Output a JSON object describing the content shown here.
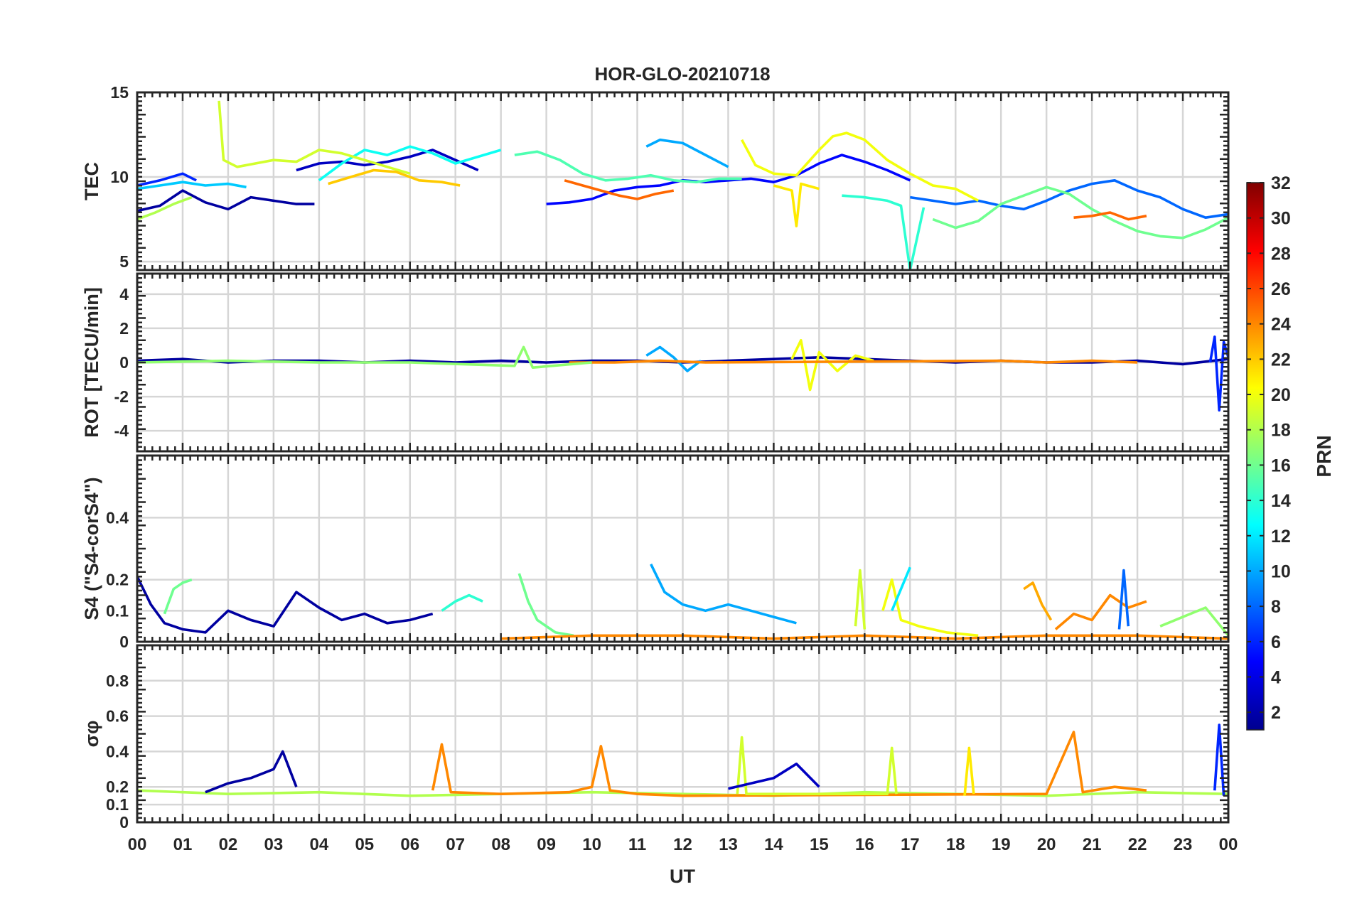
{
  "title": "HOR-GLO-20210718",
  "xlabel": "UT",
  "x_ticks": [
    "00",
    "01",
    "02",
    "03",
    "04",
    "05",
    "06",
    "07",
    "08",
    "09",
    "10",
    "11",
    "12",
    "13",
    "14",
    "15",
    "16",
    "17",
    "18",
    "19",
    "20",
    "21",
    "22",
    "23",
    "00"
  ],
  "colorbar": {
    "label": "PRN",
    "range": [
      1,
      32
    ],
    "ticks": [
      "32",
      "30",
      "28",
      "26",
      "24",
      "22",
      "20",
      "18",
      "16",
      "14",
      "12",
      "10",
      "8",
      "6",
      "4",
      "2"
    ],
    "colormap": "jet"
  },
  "chart_data": [
    {
      "type": "line",
      "panel": "TEC",
      "ylabel": "TEC",
      "ylim": [
        4.5,
        15
      ],
      "y_ticks": [
        "15",
        "10",
        "5"
      ],
      "series": [
        {
          "prn": 2,
          "x": [
            0.0,
            0.5,
            1.0,
            1.5,
            2.0,
            2.5,
            3.0,
            3.5,
            3.9
          ],
          "y": [
            8.0,
            8.3,
            9.2,
            8.5,
            8.1,
            8.8,
            8.6,
            8.4,
            8.4
          ]
        },
        {
          "prn": 3,
          "x": [
            3.5,
            4.0,
            4.5,
            5.0,
            5.5,
            6.0,
            6.5,
            7.0,
            7.5
          ],
          "y": [
            10.4,
            10.8,
            10.9,
            10.7,
            10.9,
            11.2,
            11.6,
            11.0,
            10.4
          ]
        },
        {
          "prn": 5,
          "x": [
            9.0,
            9.5,
            10.0,
            10.5,
            11.0,
            11.5,
            12.0,
            12.5,
            13.0,
            13.5,
            14.0,
            14.5,
            15.0,
            15.5,
            16.0,
            16.5,
            17.0
          ],
          "y": [
            8.4,
            8.5,
            8.7,
            9.2,
            9.4,
            9.5,
            9.8,
            9.7,
            9.8,
            9.9,
            9.7,
            10.1,
            10.8,
            11.3,
            10.9,
            10.4,
            9.8
          ]
        },
        {
          "prn": 6,
          "x": [
            0.0,
            0.5,
            1.0,
            1.3
          ],
          "y": [
            9.5,
            9.8,
            10.2,
            9.8
          ]
        },
        {
          "prn": 8,
          "x": [
            17.0,
            17.5,
            18.0,
            18.5,
            19.0,
            19.5,
            20.0,
            20.5,
            21.0,
            21.5,
            22.0,
            22.5,
            23.0,
            23.5,
            24.0
          ],
          "y": [
            8.8,
            8.6,
            8.4,
            8.6,
            8.3,
            8.1,
            8.6,
            9.2,
            9.6,
            9.8,
            9.2,
            8.8,
            8.1,
            7.6,
            7.8
          ]
        },
        {
          "prn": 10,
          "x": [
            11.2,
            11.5,
            12.0,
            12.5,
            13.0
          ],
          "y": [
            11.8,
            12.2,
            12.0,
            11.3,
            10.6
          ]
        },
        {
          "prn": 11,
          "x": [
            0.0,
            0.5,
            1.0,
            1.5,
            2.0,
            2.4
          ],
          "y": [
            9.3,
            9.5,
            9.7,
            9.5,
            9.6,
            9.4
          ]
        },
        {
          "prn": 13,
          "x": [
            4.0,
            4.5,
            5.0,
            5.5,
            6.0,
            6.5,
            7.0,
            7.5,
            8.0
          ],
          "y": [
            9.8,
            10.8,
            11.6,
            11.3,
            11.8,
            11.4,
            10.8,
            11.2,
            11.6
          ]
        },
        {
          "prn": 14,
          "x": [
            15.5,
            16.0,
            16.5,
            16.8,
            17.0,
            17.3
          ],
          "y": [
            8.9,
            8.8,
            8.6,
            8.3,
            4.5,
            8.2
          ]
        },
        {
          "prn": 15,
          "x": [
            8.3,
            8.8,
            9.3,
            9.8,
            10.3,
            10.8,
            11.3,
            11.8,
            12.3,
            12.8,
            13.3
          ],
          "y": [
            11.3,
            11.5,
            11.0,
            10.2,
            9.8,
            9.9,
            10.1,
            9.8,
            9.7,
            9.9,
            9.9
          ]
        },
        {
          "prn": 16,
          "x": [
            17.5,
            18.0,
            18.5,
            19.0,
            19.5,
            20.0,
            20.5,
            21.0,
            21.5,
            22.0,
            22.5,
            23.0,
            23.5,
            24.0
          ],
          "y": [
            7.5,
            7.0,
            7.4,
            8.4,
            8.9,
            9.4,
            9.0,
            8.1,
            7.4,
            6.8,
            6.5,
            6.4,
            6.9,
            7.6
          ]
        },
        {
          "prn": 18,
          "x": [
            0.0,
            0.4,
            0.8,
            1.2
          ],
          "y": [
            7.5,
            7.9,
            8.4,
            8.8
          ]
        },
        {
          "prn": 19,
          "x": [
            1.8,
            1.9,
            2.2,
            2.6,
            3.0,
            3.5,
            4.0,
            4.5,
            5.0,
            5.5,
            6.0
          ],
          "y": [
            14.5,
            11.0,
            10.6,
            10.8,
            11.0,
            10.9,
            11.6,
            11.4,
            11.0,
            10.6,
            10.2
          ]
        },
        {
          "prn": 20,
          "x": [
            13.3,
            13.6,
            14.0,
            14.5,
            15.0,
            15.3,
            15.6,
            16.0,
            16.5,
            17.0,
            17.5,
            18.0,
            18.5
          ],
          "y": [
            12.2,
            10.7,
            10.2,
            10.1,
            11.6,
            12.4,
            12.6,
            12.2,
            11.0,
            10.2,
            9.5,
            9.3,
            8.6
          ]
        },
        {
          "prn": 21,
          "x": [
            14.0,
            14.4,
            14.5,
            14.6,
            15.0
          ],
          "y": [
            9.5,
            9.2,
            7.1,
            9.6,
            9.3
          ]
        },
        {
          "prn": 22,
          "x": [
            4.2,
            4.7,
            5.2,
            5.7,
            6.2,
            6.7,
            7.1
          ],
          "y": [
            9.6,
            10.0,
            10.4,
            10.3,
            9.8,
            9.7,
            9.5
          ]
        },
        {
          "prn": 25,
          "x": [
            9.4,
            9.8,
            10.2,
            10.6,
            11.0,
            11.4,
            11.8
          ],
          "y": [
            9.8,
            9.5,
            9.2,
            8.9,
            8.7,
            9.0,
            9.2
          ]
        },
        {
          "prn": 25,
          "x": [
            20.6,
            21.0,
            21.4,
            21.8,
            22.2
          ],
          "y": [
            7.6,
            7.7,
            7.9,
            7.5,
            7.7
          ]
        }
      ]
    },
    {
      "type": "line",
      "panel": "ROT",
      "ylabel": "ROT [TECU/min]",
      "ylim": [
        -5.2,
        5.2
      ],
      "y_ticks": [
        "4",
        "2",
        "0",
        "-2",
        "-4"
      ],
      "series": [
        {
          "prn": 2,
          "x": [
            0.0,
            1.0,
            2.0,
            3.0,
            4.0,
            5.0,
            6.0,
            7.0,
            8.0,
            9.0,
            10.0,
            11.0,
            12.0,
            13.0,
            14.0,
            15.0,
            16.0,
            17.0,
            18.0,
            19.0,
            20.0,
            21.0,
            22.0,
            23.0,
            24.0
          ],
          "y": [
            0.1,
            0.2,
            0.0,
            0.1,
            0.1,
            0.0,
            0.1,
            0.0,
            0.1,
            0.0,
            0.1,
            0.1,
            0.0,
            0.1,
            0.2,
            0.3,
            0.2,
            0.1,
            0.0,
            0.1,
            0.0,
            0.0,
            0.1,
            -0.1,
            0.2
          ]
        },
        {
          "prn": 10,
          "x": [
            11.2,
            11.5,
            11.8,
            12.1,
            12.4
          ],
          "y": [
            0.4,
            0.9,
            0.3,
            -0.5,
            0.1
          ]
        },
        {
          "prn": 6,
          "x": [
            23.6,
            23.7,
            23.8,
            23.9,
            24.0
          ],
          "y": [
            0.0,
            1.5,
            -2.8,
            1.2,
            0.3
          ]
        },
        {
          "prn": 20,
          "x": [
            14.4,
            14.6,
            14.8,
            15.0,
            15.4,
            15.8,
            16.2
          ],
          "y": [
            0.2,
            1.3,
            -1.6,
            0.6,
            -0.5,
            0.4,
            0.1
          ]
        },
        {
          "prn": 24,
          "x": [
            9.5,
            10.5,
            11.5,
            12.5,
            19.0,
            20.0,
            21.0,
            22.0
          ],
          "y": [
            0.0,
            0.0,
            0.1,
            0.0,
            0.1,
            0.0,
            0.1,
            0.0
          ]
        },
        {
          "prn": 17,
          "x": [
            0.0,
            2.0,
            4.0,
            6.0,
            8.3,
            8.5,
            8.7,
            10.0
          ],
          "y": [
            0.0,
            0.1,
            0.0,
            0.0,
            -0.2,
            0.9,
            -0.3,
            0.0
          ]
        }
      ]
    },
    {
      "type": "line",
      "panel": "S4",
      "ylabel": "S4 (\"S4-corS4\")",
      "ylim": [
        0,
        0.6
      ],
      "y_ticks": [
        "0.4",
        "0.2",
        "0.1",
        "0"
      ],
      "series": [
        {
          "prn": 2,
          "x": [
            0.0,
            0.3,
            0.6,
            1.0,
            1.5,
            2.0,
            2.5,
            3.0,
            3.5,
            4.0,
            4.5,
            5.0,
            5.5,
            6.0,
            6.5
          ],
          "y": [
            0.21,
            0.12,
            0.06,
            0.04,
            0.03,
            0.1,
            0.07,
            0.05,
            0.16,
            0.11,
            0.07,
            0.09,
            0.06,
            0.07,
            0.09
          ]
        },
        {
          "prn": 16,
          "x": [
            0.6,
            0.8,
            1.0,
            1.2
          ],
          "y": [
            0.09,
            0.17,
            0.19,
            0.2
          ]
        },
        {
          "prn": 14,
          "x": [
            6.7,
            7.0,
            7.3,
            7.6
          ],
          "y": [
            0.1,
            0.13,
            0.15,
            0.13
          ]
        },
        {
          "prn": 16,
          "x": [
            8.4,
            8.6,
            8.8,
            9.2,
            9.6
          ],
          "y": [
            0.22,
            0.13,
            0.07,
            0.03,
            0.02
          ]
        },
        {
          "prn": 10,
          "x": [
            11.3,
            11.6,
            12.0,
            12.5,
            13.0,
            13.5,
            14.0,
            14.5
          ],
          "y": [
            0.25,
            0.16,
            0.12,
            0.1,
            0.12,
            0.1,
            0.08,
            0.06
          ]
        },
        {
          "prn": 19,
          "x": [
            15.8,
            15.9,
            16.0
          ],
          "y": [
            0.05,
            0.23,
            0.04
          ]
        },
        {
          "prn": 20,
          "x": [
            16.4,
            16.6,
            16.8,
            17.2,
            17.8,
            18.5
          ],
          "y": [
            0.1,
            0.2,
            0.07,
            0.05,
            0.03,
            0.02
          ]
        },
        {
          "prn": 12,
          "x": [
            16.6,
            16.8,
            17.0
          ],
          "y": [
            0.1,
            0.17,
            0.24
          ]
        },
        {
          "prn": 23,
          "x": [
            19.5,
            19.7,
            19.9,
            20.1
          ],
          "y": [
            0.17,
            0.19,
            0.12,
            0.07
          ]
        },
        {
          "prn": 24,
          "x": [
            20.2,
            20.6,
            21.0,
            21.4,
            21.8,
            22.2
          ],
          "y": [
            0.04,
            0.09,
            0.07,
            0.15,
            0.11,
            0.13
          ]
        },
        {
          "prn": 8,
          "x": [
            21.6,
            21.7,
            21.8
          ],
          "y": [
            0.04,
            0.23,
            0.05
          ]
        },
        {
          "prn": 17,
          "x": [
            22.5,
            23.0,
            23.5,
            24.0
          ],
          "y": [
            0.05,
            0.08,
            0.11,
            0.02
          ]
        },
        {
          "prn": 24,
          "x": [
            8.0,
            10.0,
            12.0,
            14.0,
            16.0,
            18.0,
            20.0,
            22.0,
            24.0
          ],
          "y": [
            0.01,
            0.02,
            0.02,
            0.01,
            0.02,
            0.01,
            0.02,
            0.02,
            0.01
          ]
        }
      ]
    },
    {
      "type": "line",
      "panel": "sigma_phi",
      "ylabel": "σφ",
      "ylim": [
        0,
        1
      ],
      "y_ticks": [
        "0.8",
        "0.6",
        "0.4",
        "0.2",
        "0.1",
        "0"
      ],
      "series": [
        {
          "prn": 18,
          "x": [
            0.0,
            2.0,
            4.0,
            6.0,
            8.0,
            10.0,
            12.0,
            14.0,
            16.0,
            18.0,
            20.0,
            22.0,
            24.0
          ],
          "y": [
            0.18,
            0.16,
            0.17,
            0.15,
            0.16,
            0.17,
            0.16,
            0.15,
            0.17,
            0.16,
            0.15,
            0.17,
            0.16
          ]
        },
        {
          "prn": 2,
          "x": [
            1.5,
            2.0,
            2.5,
            3.0,
            3.2,
            3.5
          ],
          "y": [
            0.17,
            0.22,
            0.25,
            0.3,
            0.4,
            0.2
          ]
        },
        {
          "prn": 24,
          "x": [
            6.5,
            6.7,
            6.9,
            8.0,
            9.5,
            10.0,
            10.2,
            10.4,
            11.0,
            12.0,
            20.0,
            20.6,
            20.8,
            21.5,
            22.2
          ],
          "y": [
            0.18,
            0.44,
            0.17,
            0.16,
            0.17,
            0.2,
            0.43,
            0.18,
            0.16,
            0.15,
            0.16,
            0.51,
            0.17,
            0.2,
            0.18
          ]
        },
        {
          "prn": 19,
          "x": [
            13.2,
            13.3,
            13.4,
            16.5,
            16.6,
            16.7
          ],
          "y": [
            0.16,
            0.48,
            0.16,
            0.16,
            0.42,
            0.16
          ]
        },
        {
          "prn": 21,
          "x": [
            18.2,
            18.3,
            18.4
          ],
          "y": [
            0.15,
            0.42,
            0.16
          ]
        },
        {
          "prn": 6,
          "x": [
            23.7,
            23.8,
            23.9
          ],
          "y": [
            0.18,
            0.55,
            0.15
          ]
        },
        {
          "prn": 3,
          "x": [
            13.0,
            14.0,
            14.5,
            15.0
          ],
          "y": [
            0.19,
            0.25,
            0.33,
            0.2
          ]
        }
      ]
    }
  ]
}
